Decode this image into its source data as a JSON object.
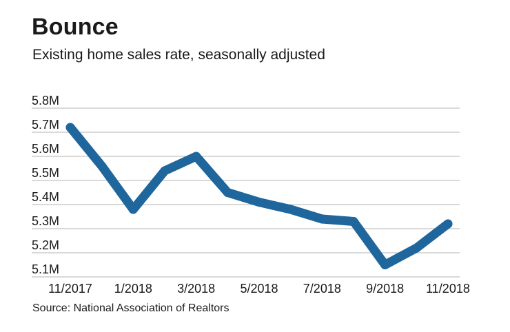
{
  "header": {
    "title": "Bounce",
    "subtitle": "Existing home sales rate, seasonally adjusted"
  },
  "footer": {
    "source": "Source: National Association of Realtors"
  },
  "colors": {
    "line": "#1f669c",
    "grid": "#b3b3b3",
    "text": "#1a1a1a"
  },
  "chart_data": {
    "type": "line",
    "title": "Bounce",
    "subtitle": "Existing home sales rate, seasonally adjusted",
    "xlabel": "",
    "ylabel": "",
    "x": [
      "11/2017",
      "12/2017",
      "1/2018",
      "2/2018",
      "3/2018",
      "4/2018",
      "5/2018",
      "6/2018",
      "7/2018",
      "8/2018",
      "9/2018",
      "10/2018",
      "11/2018"
    ],
    "x_tick_labels": [
      "11/2017",
      "1/2018",
      "3/2018",
      "5/2018",
      "7/2018",
      "9/2018",
      "11/2018"
    ],
    "y_tick_labels": [
      "5.8M",
      "5.7M",
      "5.6M",
      "5.5M",
      "5.4M",
      "5.3M",
      "5.2M",
      "5.1M"
    ],
    "y_ticks": [
      5.8,
      5.7,
      5.6,
      5.5,
      5.4,
      5.3,
      5.2,
      5.1
    ],
    "ylim": [
      5.1,
      5.8
    ],
    "series": [
      {
        "values": [
          5.72,
          5.56,
          5.38,
          5.54,
          5.6,
          5.45,
          5.41,
          5.38,
          5.34,
          5.33,
          5.15,
          5.22,
          5.32
        ]
      }
    ],
    "grid": true,
    "legend": "none"
  }
}
